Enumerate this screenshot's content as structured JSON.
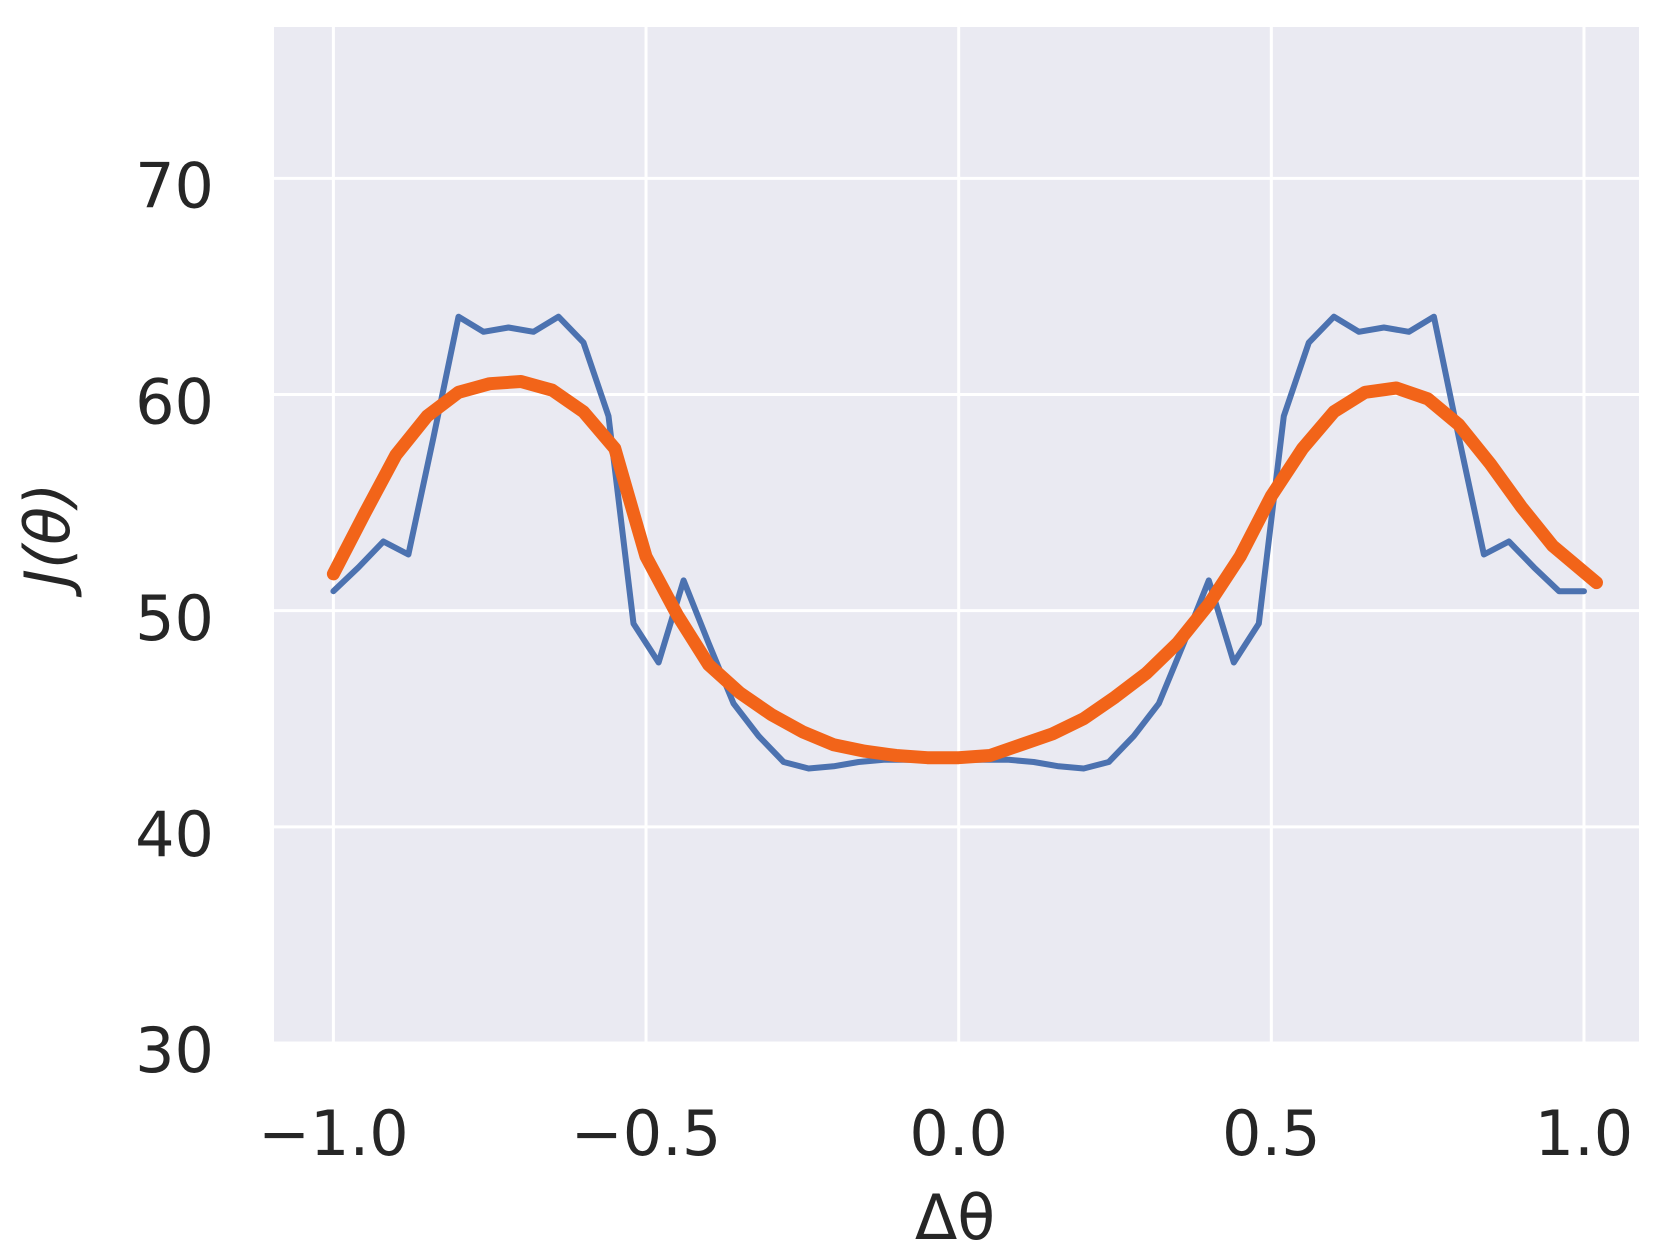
{
  "chart_data": {
    "type": "line",
    "xlabel": "Δθ",
    "ylabel": "J(θ)",
    "xlim": [
      -1.095,
      1.088
    ],
    "ylim": [
      30,
      77
    ],
    "xticks": [
      {
        "value": -1.0,
        "label": "−1.0"
      },
      {
        "value": -0.5,
        "label": "−0.5"
      },
      {
        "value": 0.0,
        "label": "0.0"
      },
      {
        "value": 0.5,
        "label": "0.5"
      },
      {
        "value": 1.0,
        "label": "1.0"
      }
    ],
    "yticks": [
      30,
      40,
      50,
      60,
      70
    ],
    "grid": true,
    "series": [
      {
        "color": "#4c72b0",
        "x": [
          -1.0,
          -0.96,
          -0.92,
          -0.88,
          -0.84,
          -0.8,
          -0.76,
          -0.72,
          -0.68,
          -0.64,
          -0.6,
          -0.56,
          -0.52,
          -0.48,
          -0.44,
          -0.4,
          -0.36,
          -0.32,
          -0.28,
          -0.24,
          -0.2,
          -0.16,
          -0.12,
          -0.08,
          -0.04,
          0.0,
          0.04,
          0.08,
          0.12,
          0.16,
          0.2,
          0.24,
          0.28,
          0.32,
          0.36,
          0.4,
          0.44,
          0.48,
          0.52,
          0.56,
          0.6,
          0.64,
          0.68,
          0.72,
          0.76,
          0.8,
          0.84,
          0.88,
          0.92,
          0.96,
          1.0
        ],
        "values": [
          50.9,
          52.0,
          53.2,
          52.6,
          58.0,
          63.6,
          62.9,
          63.1,
          62.9,
          63.6,
          62.4,
          59.0,
          49.4,
          47.6,
          51.4,
          48.5,
          45.7,
          44.2,
          43.0,
          42.7,
          42.8,
          43.0,
          43.1,
          43.1,
          43.1,
          43.1,
          43.1,
          43.1,
          43.0,
          42.8,
          42.7,
          43.0,
          44.2,
          45.7,
          48.5,
          51.4,
          47.6,
          49.4,
          59.0,
          62.4,
          63.6,
          62.9,
          63.1,
          62.9,
          63.6,
          58.0,
          52.6,
          53.2,
          52.0,
          50.9,
          50.9
        ]
      },
      {
        "color": "#f26419",
        "x": [
          -1.0,
          -0.95,
          -0.9,
          -0.85,
          -0.8,
          -0.75,
          -0.7,
          -0.65,
          -0.6,
          -0.55,
          -0.52,
          -0.5,
          -0.45,
          -0.4,
          -0.35,
          -0.3,
          -0.25,
          -0.2,
          -0.15,
          -0.1,
          -0.05,
          0.0,
          0.05,
          0.1,
          0.15,
          0.2,
          0.25,
          0.3,
          0.35,
          0.4,
          0.45,
          0.5,
          0.55,
          0.6,
          0.65,
          0.7,
          0.75,
          0.8,
          0.85,
          0.9,
          0.95,
          1.02
        ],
        "values": [
          51.7,
          54.5,
          57.2,
          59.0,
          60.1,
          60.5,
          60.6,
          60.2,
          59.2,
          57.5,
          54.5,
          52.5,
          49.8,
          47.5,
          46.2,
          45.2,
          44.4,
          43.8,
          43.5,
          43.3,
          43.2,
          43.2,
          43.3,
          43.8,
          44.3,
          45.0,
          46.0,
          47.1,
          48.5,
          50.3,
          52.5,
          55.3,
          57.5,
          59.2,
          60.1,
          60.3,
          59.8,
          58.6,
          56.8,
          54.8,
          53.0,
          51.3
        ]
      }
    ]
  }
}
